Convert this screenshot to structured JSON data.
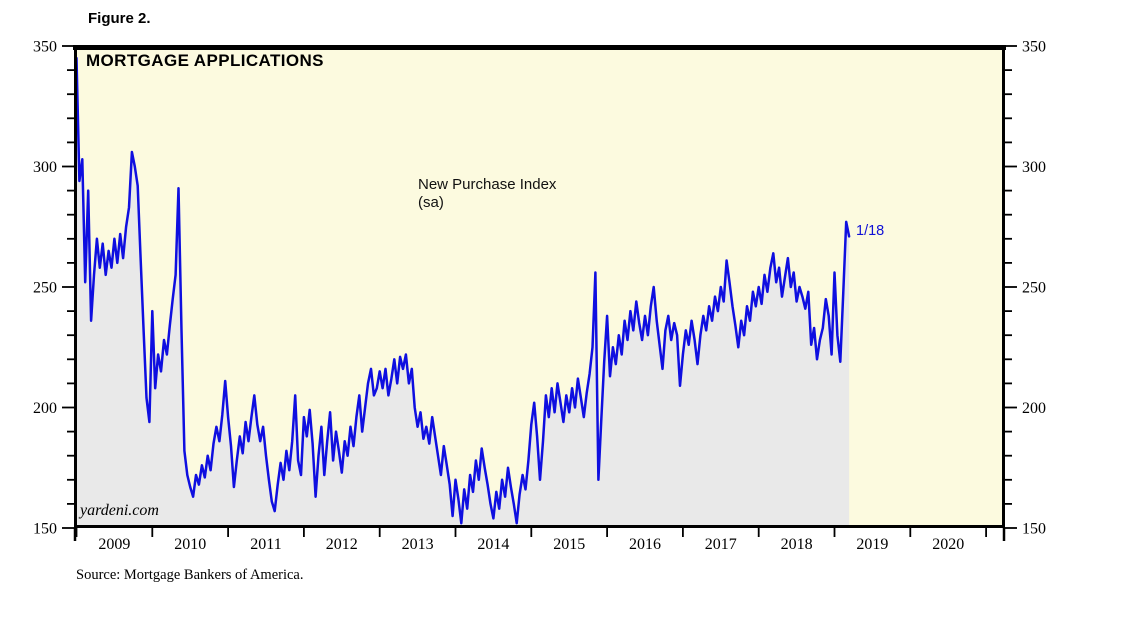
{
  "figure_label": "Figure 2.",
  "title": "MORTGAGE APPLICATIONS",
  "series_label": {
    "line1": "New Purchase Index",
    "line2": "(sa)"
  },
  "end_label": "1/18",
  "watermark": "yardeni.com",
  "source": "Source: Mortgage Bankers of America.",
  "colors": {
    "plot_background": "#FCFADF",
    "area_fill": "#E9E9E9",
    "line": "#0F0FE0",
    "end_label_text": "#1010D6",
    "axis": "#000000"
  },
  "chart_data": {
    "type": "line",
    "title": "MORTGAGE APPLICATIONS",
    "series_name": "New Purchase Index (sa)",
    "ylabel": "",
    "xlabel": "",
    "ylim": [
      150,
      350
    ],
    "y_major_ticks": [
      150,
      200,
      250,
      300,
      350
    ],
    "y_minor_step": 10,
    "x_axis_years": [
      2009,
      2010,
      2011,
      2012,
      2013,
      2014,
      2015,
      2016,
      2017,
      2018,
      2019,
      2020
    ],
    "x_start_year": 2009,
    "points_per_year": 26,
    "last_point_label": "1/18",
    "legend_position": "none",
    "grid": false,
    "values": [
      [
        345,
        294,
        303,
        252,
        290,
        236,
        255,
        270,
        258,
        268,
        255,
        265,
        258,
        270,
        260,
        272,
        262,
        275,
        283,
        306,
        300,
        292,
        262,
        232,
        204,
        194
      ],
      [
        240,
        208,
        222,
        215,
        228,
        222,
        234,
        245,
        255,
        291,
        232,
        182,
        172,
        167,
        163,
        172,
        168,
        176,
        171,
        180,
        174,
        185,
        192,
        186,
        197,
        211
      ],
      [
        196,
        184,
        167,
        178,
        188,
        181,
        194,
        186,
        196,
        205,
        193,
        186,
        192,
        180,
        170,
        161,
        157,
        168,
        177,
        170,
        182,
        174,
        186,
        205,
        178,
        172
      ],
      [
        196,
        188,
        199,
        185,
        163,
        180,
        192,
        172,
        186,
        198,
        178,
        190,
        182,
        173,
        186,
        180,
        192,
        184,
        196,
        205,
        190,
        200,
        210,
        216,
        205,
        208
      ],
      [
        215,
        208,
        216,
        205,
        212,
        220,
        210,
        221,
        216,
        222,
        210,
        216,
        200,
        192,
        198,
        187,
        192,
        185,
        196,
        188,
        180,
        172,
        184,
        176,
        168,
        155
      ],
      [
        170,
        162,
        152,
        166,
        158,
        172,
        165,
        178,
        170,
        183,
        175,
        168,
        160,
        154,
        165,
        158,
        170,
        163,
        175,
        167,
        160,
        152,
        164,
        172,
        166,
        178
      ],
      [
        193,
        202,
        188,
        170,
        186,
        205,
        196,
        208,
        198,
        210,
        202,
        194,
        205,
        198,
        208,
        200,
        212,
        204,
        196,
        206,
        214,
        225,
        256,
        170,
        195,
        219
      ],
      [
        238,
        213,
        225,
        218,
        230,
        222,
        236,
        228,
        240,
        232,
        244,
        235,
        228,
        238,
        230,
        242,
        250,
        236,
        226,
        216,
        232,
        238,
        228,
        235,
        230,
        209
      ],
      [
        222,
        232,
        226,
        236,
        228,
        218,
        230,
        238,
        232,
        242,
        236,
        246,
        240,
        250,
        244,
        261,
        252,
        242,
        234,
        225,
        236,
        230,
        242,
        236,
        248,
        242
      ],
      [
        250,
        243,
        255,
        248,
        258,
        264,
        252,
        258,
        246,
        254,
        262,
        250,
        256,
        244,
        250,
        246,
        241,
        248,
        226,
        233,
        220,
        228,
        233,
        245,
        238,
        222
      ],
      [
        256,
        230,
        219,
        247,
        277,
        271
      ]
    ]
  }
}
